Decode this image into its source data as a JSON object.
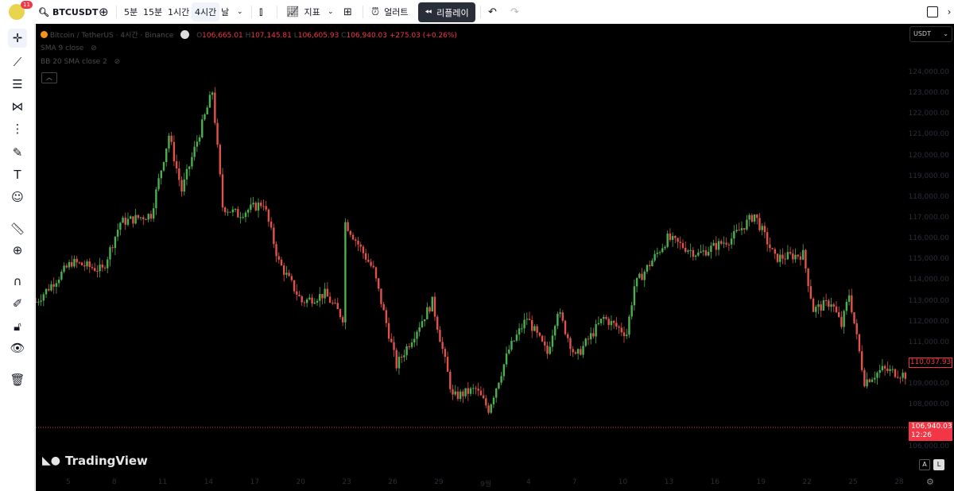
{
  "toolbar": {
    "notification_count": "11",
    "symbol": "BTCUSDT",
    "intervals": [
      "5분",
      "15분",
      "1시간",
      "4시간",
      "날"
    ],
    "active_interval": "4시간",
    "indicators_label": "지표",
    "alert_label": "얼러트",
    "replay_label": "리플레이"
  },
  "legend": {
    "symbol_title": "Bitcoin / TetherUS · 4시간 · Binance",
    "open_label": "O",
    "open": "106,665.01",
    "high_label": "H",
    "high": "107,145.81",
    "low_label": "L",
    "low": "106,605.93",
    "close_label": "C",
    "close": "106,940.03",
    "change": "+275.03 (+0.26%)",
    "indicators": [
      "SMA 9 close",
      "BB 20 SMA close 2"
    ]
  },
  "currency": "USDT",
  "watermark": "TradingView",
  "scale_buttons": [
    "A",
    "L"
  ],
  "colors": {
    "up": "#089981",
    "down": "#f23645",
    "up_body": "#4caf50",
    "down_body": "#e0524a",
    "background": "#000000"
  },
  "chart_data": {
    "type": "candlestick",
    "interval": "4h",
    "price_axis": {
      "min": 105000,
      "max": 126000,
      "step": 1000
    },
    "price_markers": [
      {
        "value": "110,037.93",
        "style": "outline"
      },
      {
        "value": "106,940.03",
        "countdown": "12:26",
        "style": "filled"
      }
    ],
    "x_tick_labels": [
      "5",
      "8",
      "11",
      "14",
      "17",
      "20",
      "23",
      "26",
      "29",
      "9월",
      "4",
      "7",
      "10",
      "13",
      "16",
      "19",
      "22",
      "25",
      "28"
    ],
    "approx_close_path": [
      [
        "08-02 20",
        112983
      ],
      [
        "08-05 04",
        114896
      ],
      [
        "08-07 04",
        114513
      ],
      [
        "08-08 08",
        116808
      ],
      [
        "08-10 08",
        117191
      ],
      [
        "08-11 12",
        121015
      ],
      [
        "08-12 08",
        118338
      ],
      [
        "08-14 08",
        123120
      ],
      [
        "08-15 00",
        117573
      ],
      [
        "08-16 00",
        117191
      ],
      [
        "08-17 16",
        117765
      ],
      [
        "08-18 16",
        114896
      ],
      [
        "08-20 04",
        112983
      ],
      [
        "08-21 16",
        113366
      ],
      [
        "08-22 20",
        112218
      ],
      [
        "08-23 00",
        116808
      ],
      [
        "08-24 20",
        114513
      ],
      [
        "08-26 08",
        109923
      ],
      [
        "08-27 12",
        111453
      ],
      [
        "08-28 16",
        112983
      ],
      [
        "08-30 00",
        108393
      ],
      [
        "08-31 12",
        108776
      ],
      [
        "09-01 08",
        107820
      ],
      [
        "09-02 16",
        110688
      ],
      [
        "09-03 20",
        112218
      ],
      [
        "09-05 04",
        110497
      ],
      [
        "09-05 20",
        112601
      ],
      [
        "09-07 00",
        110306
      ],
      [
        "09-08 20",
        112218
      ],
      [
        "09-10 08",
        111453
      ],
      [
        "09-10 20",
        113748
      ],
      [
        "09-13 00",
        116043
      ],
      [
        "09-15 00",
        115278
      ],
      [
        "09-17 04",
        116043
      ],
      [
        "09-18 16",
        117191
      ],
      [
        "09-20 00",
        115087
      ],
      [
        "09-21 20",
        115278
      ],
      [
        "09-22 12",
        112601
      ],
      [
        "09-23 16",
        112983
      ],
      [
        "09-24 08",
        111836
      ],
      [
        "09-24 20",
        113366
      ],
      [
        "09-25 20",
        109158
      ],
      [
        "09-27 00",
        109732
      ],
      [
        "09-28 12",
        109464
      ]
    ]
  }
}
